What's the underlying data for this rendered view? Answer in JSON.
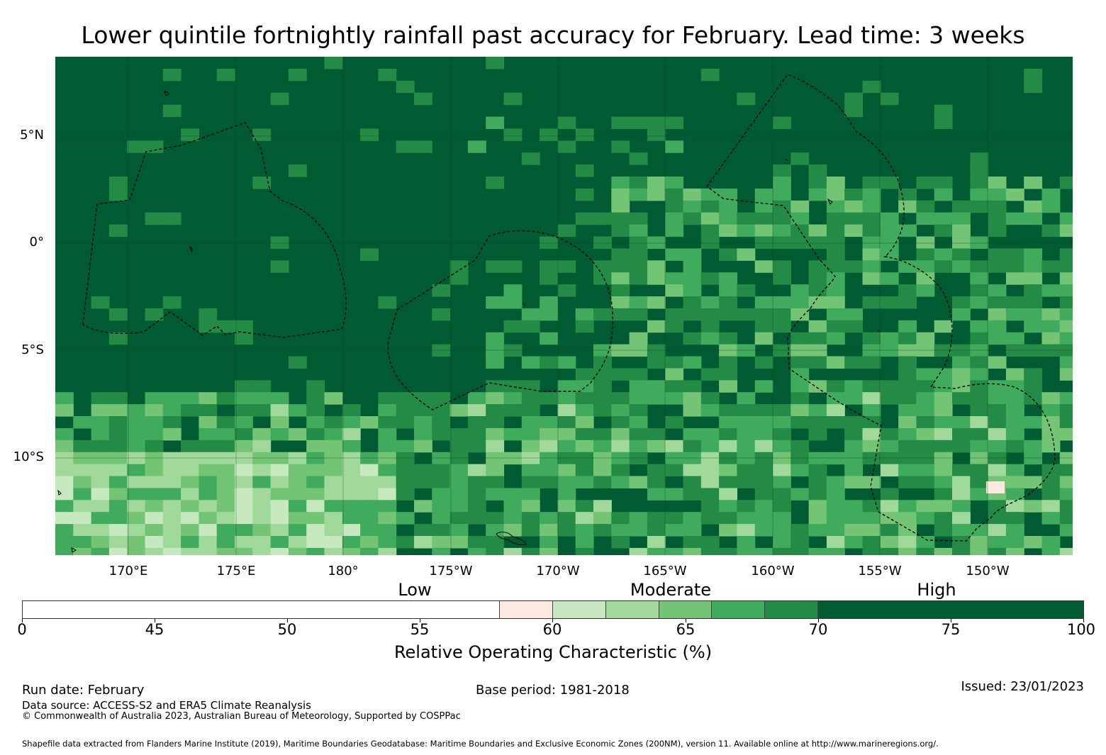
{
  "title": "Lower quintile fortnightly rainfall past accuracy for February. Lead time: 3 weeks",
  "map": {
    "lat_labels": [
      "5°N",
      "0°",
      "5°S",
      "10°S"
    ],
    "lon_labels": [
      "170°E",
      "175°E",
      "180°",
      "175°W",
      "170°W",
      "165°W",
      "160°W",
      "155°W",
      "150°W"
    ],
    "base_color": "#005a32"
  },
  "colorbar": {
    "categories": [
      "Low",
      "Moderate",
      "High"
    ],
    "ticks": [
      "0",
      "45",
      "50",
      "55",
      "60",
      "65",
      "70",
      "75",
      "100"
    ],
    "colors": [
      "#ffffff",
      "#fee9e0",
      "#c7e9c0",
      "#a1d99b",
      "#74c476",
      "#41ab5d",
      "#238b45",
      "#005a32"
    ],
    "axis_label": "Relative Operating Characteristic (%)"
  },
  "footer": {
    "run_date": "Run date: February",
    "base_period": "Base period: 1981-2018",
    "issued": "Issued: 23/01/2023",
    "source": "Data source: ACCESS-S2 and ERA5 Climate Reanalysis",
    "copyright": "© Commonwealth of Australia 2023, Australian Bureau of Meteorology, Supported by COSPPac",
    "shapefile": "Shapefile data extracted from Flanders Marine Institute (2019), Maritime Boundaries Geodatabase: Maritime Boundaries and Exclusive Economic Zones (200NM), version 11. Available online at http://www.marineregions.org/."
  }
}
